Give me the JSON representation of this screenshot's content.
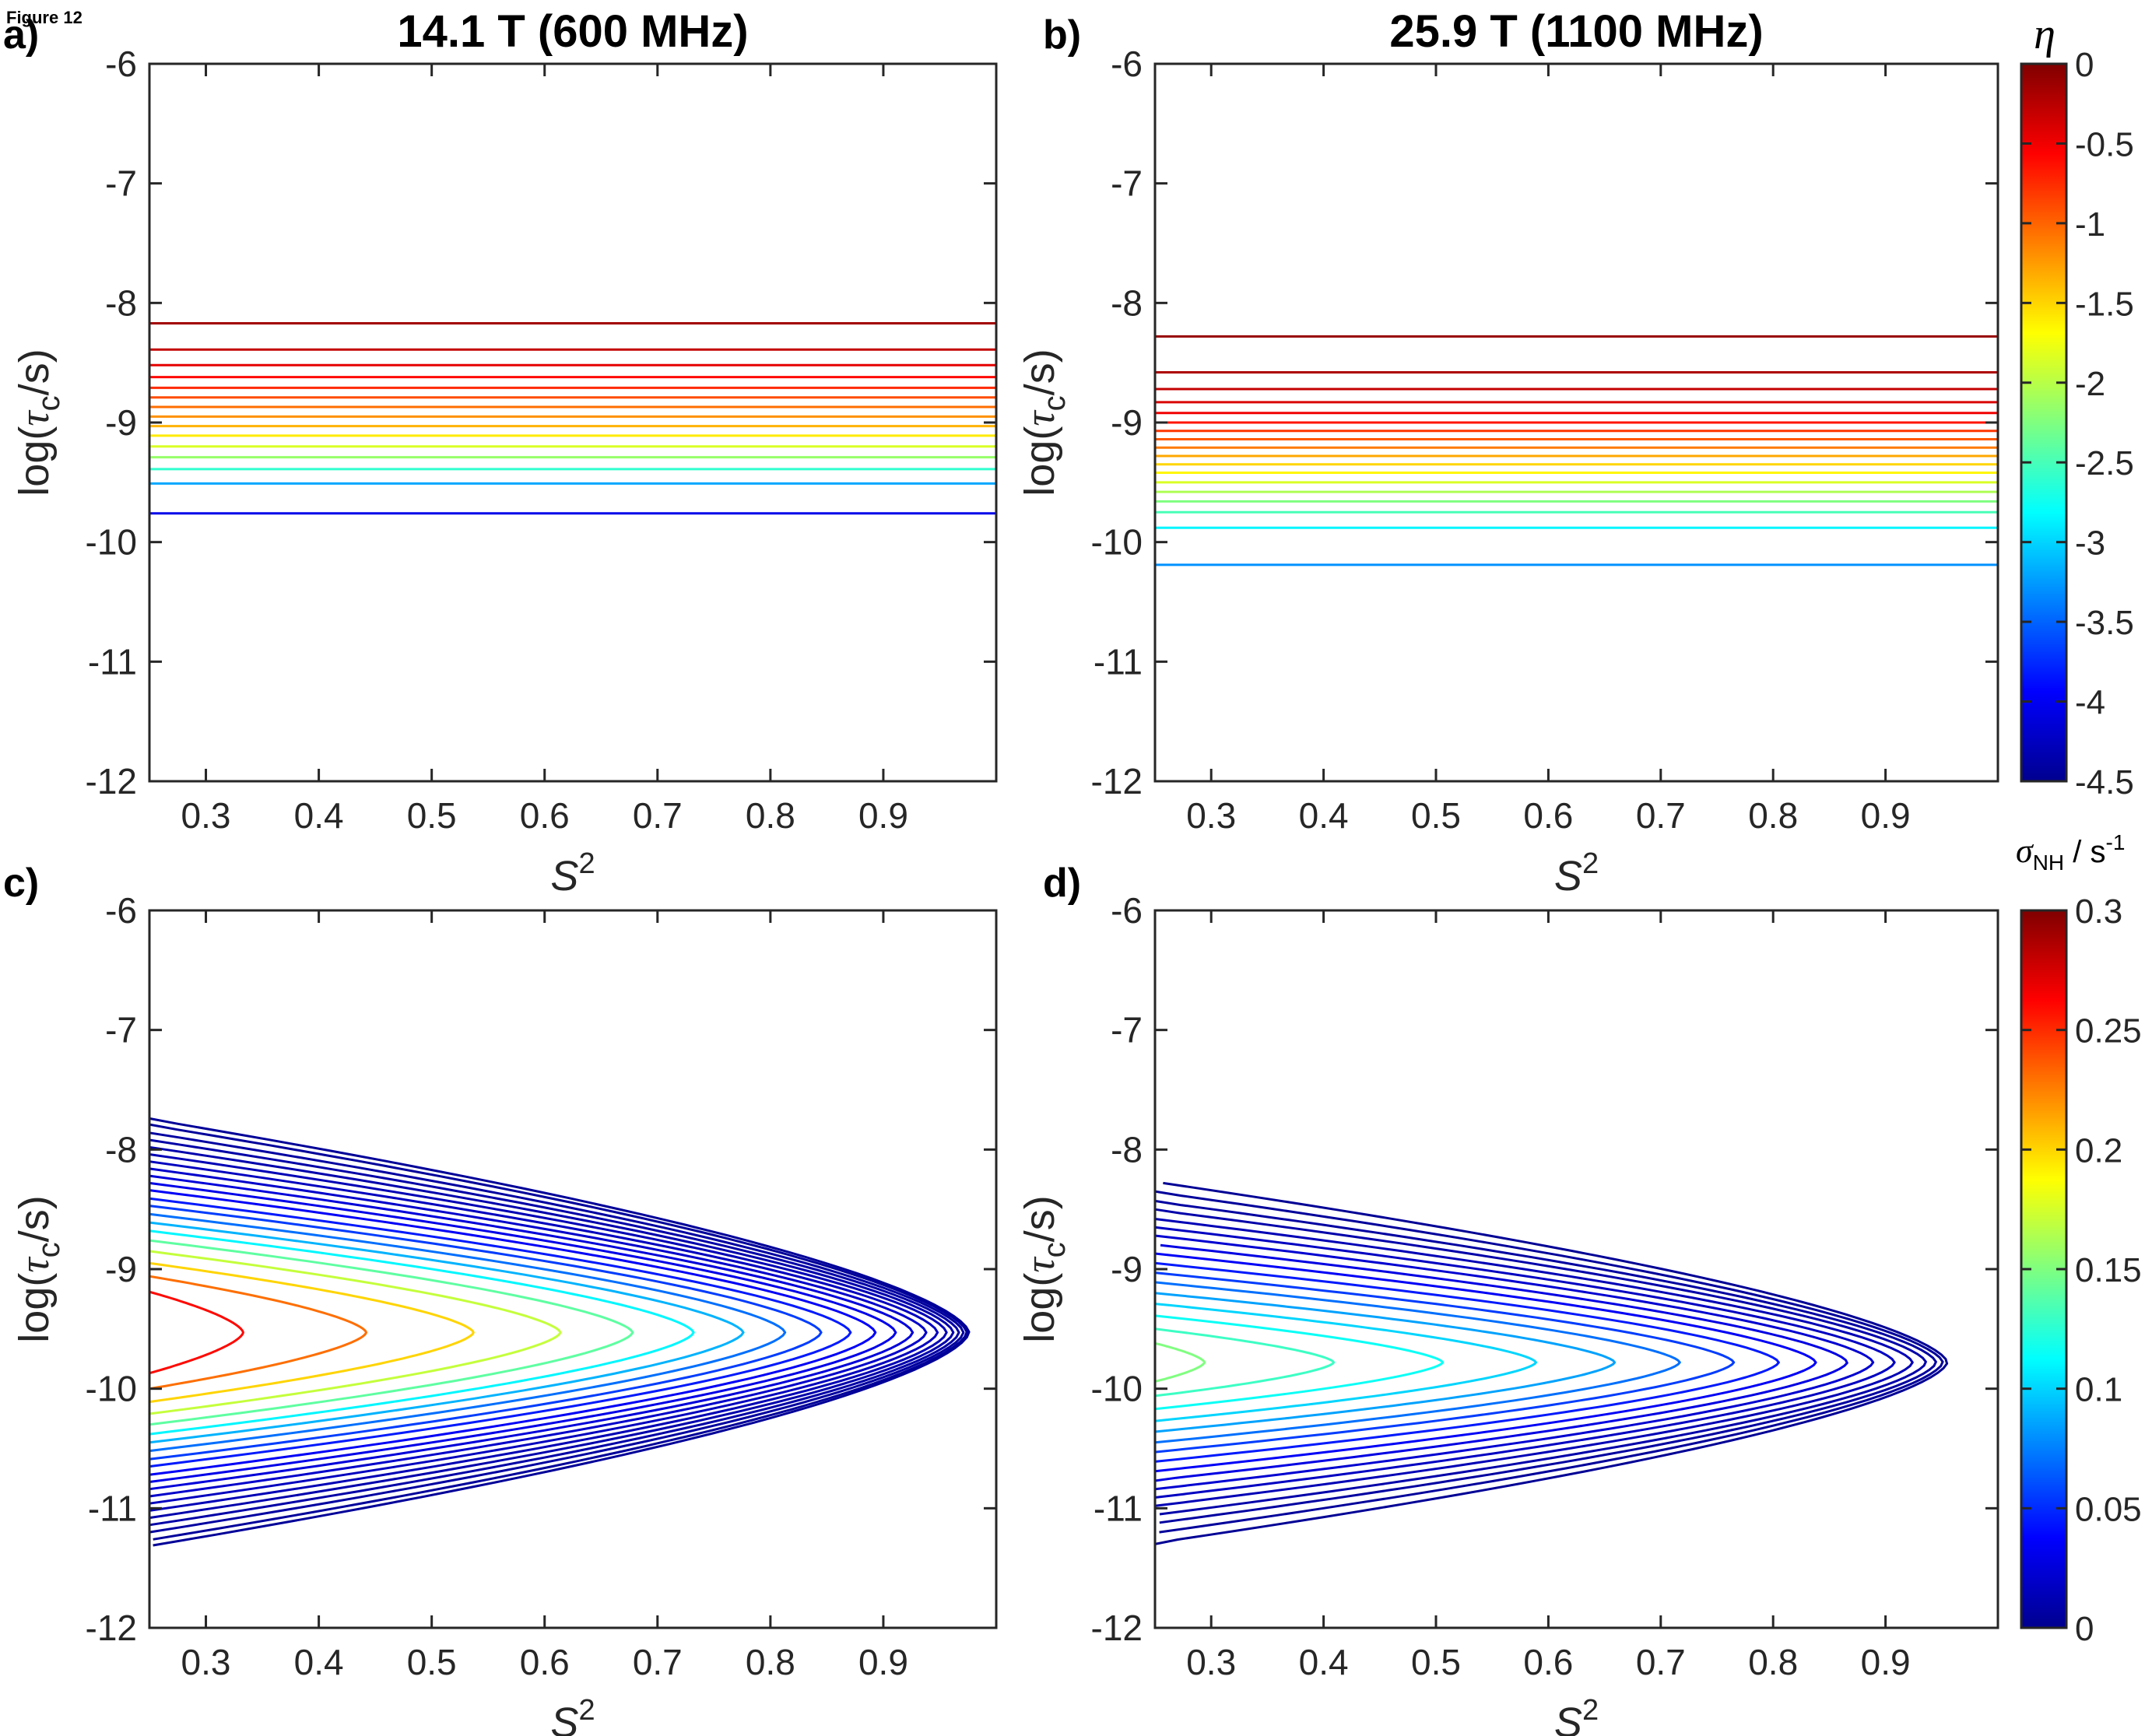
{
  "figure_label": "Figure 12",
  "colormap": [
    "#00008f",
    "#0000ff",
    "#00ffff",
    "#ffff00",
    "#ff0000",
    "#800000"
  ],
  "axis_color": "#262626",
  "chart_data": [
    {
      "panel": "a)",
      "type": "line",
      "title": "14.1 T (600 MHz)",
      "xlabel": "S2",
      "ylabel": "log(τc/s)",
      "xlim": [
        0.25,
        1.0
      ],
      "ylim": [
        -12,
        -6
      ],
      "xticks": [
        0.3,
        0.4,
        0.5,
        0.6,
        0.7,
        0.8,
        0.9
      ],
      "yticks": [
        -6,
        -7,
        -8,
        -9,
        -10,
        -11,
        -12
      ],
      "grid": false,
      "color_min": -4.5,
      "color_max": 0,
      "contours": [
        {
          "y": -8.17,
          "level": -0.15
        },
        {
          "y": -8.39,
          "level": -0.3
        },
        {
          "y": -8.52,
          "level": -0.45
        },
        {
          "y": -8.62,
          "level": -0.6
        },
        {
          "y": -8.71,
          "level": -0.75
        },
        {
          "y": -8.79,
          "level": -0.9
        },
        {
          "y": -8.87,
          "level": -1.05
        },
        {
          "y": -8.95,
          "level": -1.2
        },
        {
          "y": -9.03,
          "level": -1.35
        },
        {
          "y": -9.11,
          "level": -1.6
        },
        {
          "y": -9.2,
          "level": -1.85
        },
        {
          "y": -9.29,
          "level": -2.15
        },
        {
          "y": -9.39,
          "level": -2.6
        },
        {
          "y": -9.51,
          "level": -3.2
        },
        {
          "y": -9.76,
          "level": -4.05
        }
      ]
    },
    {
      "panel": "b)",
      "type": "line",
      "title": "25.9 T (1100 MHz)",
      "xlabel": "S2",
      "ylabel": "log(τc/s)",
      "xlim": [
        0.25,
        1.0
      ],
      "ylim": [
        -12,
        -6
      ],
      "xticks": [
        0.3,
        0.4,
        0.5,
        0.6,
        0.7,
        0.8,
        0.9
      ],
      "yticks": [
        -6,
        -7,
        -8,
        -9,
        -10,
        -11,
        -12
      ],
      "grid": false,
      "color_min": -4.5,
      "color_max": 0,
      "contours": [
        {
          "y": -8.28,
          "level": -0.1
        },
        {
          "y": -8.58,
          "level": -0.2
        },
        {
          "y": -8.72,
          "level": -0.3
        },
        {
          "y": -8.83,
          "level": -0.4
        },
        {
          "y": -8.92,
          "level": -0.5
        },
        {
          "y": -9.0,
          "level": -0.65
        },
        {
          "y": -9.07,
          "level": -0.8
        },
        {
          "y": -9.14,
          "level": -0.95
        },
        {
          "y": -9.21,
          "level": -1.1
        },
        {
          "y": -9.28,
          "level": -1.3
        },
        {
          "y": -9.35,
          "level": -1.5
        },
        {
          "y": -9.42,
          "level": -1.65
        },
        {
          "y": -9.5,
          "level": -1.85
        },
        {
          "y": -9.58,
          "level": -2.05
        },
        {
          "y": -9.66,
          "level": -2.25
        },
        {
          "y": -9.75,
          "level": -2.5
        },
        {
          "y": -9.88,
          "level": -2.85
        },
        {
          "y": -10.19,
          "level": -3.3
        }
      ]
    },
    {
      "panel": "c)",
      "type": "line",
      "title": "",
      "xlabel": "S2",
      "ylabel": "log(τc/s)",
      "xlim": [
        0.25,
        1.0
      ],
      "ylim": [
        -12,
        -6
      ],
      "xticks": [
        0.3,
        0.4,
        0.5,
        0.6,
        0.7,
        0.8,
        0.9
      ],
      "yticks": [
        -6,
        -7,
        -8,
        -9,
        -10,
        -11,
        -12
      ],
      "grid": false,
      "color_min": 0,
      "color_max": 0.3,
      "center_y": -9.53,
      "contours": [
        {
          "tip": 0.333,
          "top": -9.19,
          "bottom": -9.87,
          "level": 0.26
        },
        {
          "tip": 0.442,
          "top": -9.06,
          "bottom": -10.0,
          "level": 0.23
        },
        {
          "tip": 0.537,
          "top": -8.95,
          "bottom": -10.11,
          "level": 0.2
        },
        {
          "tip": 0.614,
          "top": -8.85,
          "bottom": -10.21,
          "level": 0.17
        },
        {
          "tip": 0.678,
          "top": -8.76,
          "bottom": -10.3,
          "level": 0.14
        },
        {
          "tip": 0.732,
          "top": -8.68,
          "bottom": -10.38,
          "level": 0.11
        },
        {
          "tip": 0.776,
          "top": -8.61,
          "bottom": -10.45,
          "level": 0.09
        },
        {
          "tip": 0.813,
          "top": -8.54,
          "bottom": -10.52,
          "level": 0.07
        },
        {
          "tip": 0.845,
          "top": -8.47,
          "bottom": -10.59,
          "level": 0.055
        },
        {
          "tip": 0.871,
          "top": -8.41,
          "bottom": -10.65,
          "level": 0.045
        },
        {
          "tip": 0.893,
          "top": -8.34,
          "bottom": -10.72,
          "level": 0.035
        },
        {
          "tip": 0.911,
          "top": -8.28,
          "bottom": -10.78,
          "level": 0.03
        },
        {
          "tip": 0.926,
          "top": -8.22,
          "bottom": -10.84,
          "level": 0.025
        },
        {
          "tip": 0.938,
          "top": -8.16,
          "bottom": -10.9,
          "level": 0.02
        },
        {
          "tip": 0.948,
          "top": -8.1,
          "bottom": -10.96,
          "level": 0.016
        },
        {
          "tip": 0.956,
          "top": -8.04,
          "bottom": -11.02,
          "level": 0.013
        },
        {
          "tip": 0.962,
          "top": -7.98,
          "bottom": -11.08,
          "level": 0.01
        },
        {
          "tip": 0.967,
          "top": -7.92,
          "bottom": -11.14,
          "level": 0.008
        },
        {
          "tip": 0.971,
          "top": -7.86,
          "bottom": -11.2,
          "level": 0.006
        },
        {
          "tip": 0.974,
          "top": -7.79,
          "bottom": -11.26,
          "level": 0.004
        },
        {
          "tip": 0.976,
          "top": -7.74,
          "bottom": -11.31,
          "level": 0.003
        }
      ]
    },
    {
      "panel": "d)",
      "type": "line",
      "title": "",
      "xlabel": "S2",
      "ylabel": "log(τc/s)",
      "xlim": [
        0.25,
        1.0
      ],
      "ylim": [
        -12,
        -6
      ],
      "xticks": [
        0.3,
        0.4,
        0.5,
        0.6,
        0.7,
        0.8,
        0.9
      ],
      "yticks": [
        -6,
        -7,
        -8,
        -9,
        -10,
        -11,
        -12
      ],
      "grid": false,
      "color_min": 0,
      "color_max": 0.3,
      "center_y": -9.78,
      "contours": [
        {
          "tip": 0.294,
          "top": -9.62,
          "bottom": -9.94,
          "level": 0.15
        },
        {
          "tip": 0.409,
          "top": -9.5,
          "bottom": -10.06,
          "level": 0.13
        },
        {
          "tip": 0.506,
          "top": -9.39,
          "bottom": -10.17,
          "level": 0.115
        },
        {
          "tip": 0.589,
          "top": -9.29,
          "bottom": -10.27,
          "level": 0.1
        },
        {
          "tip": 0.659,
          "top": -9.2,
          "bottom": -10.36,
          "level": 0.085
        },
        {
          "tip": 0.717,
          "top": -9.11,
          "bottom": -10.45,
          "level": 0.07
        },
        {
          "tip": 0.765,
          "top": -9.03,
          "bottom": -10.53,
          "level": 0.055
        },
        {
          "tip": 0.805,
          "top": -8.95,
          "bottom": -10.61,
          "level": 0.045
        },
        {
          "tip": 0.838,
          "top": -8.87,
          "bottom": -10.69,
          "level": 0.035
        },
        {
          "tip": 0.866,
          "top": -8.8,
          "bottom": -10.77,
          "level": 0.028
        },
        {
          "tip": 0.889,
          "top": -8.72,
          "bottom": -10.84,
          "level": 0.022
        },
        {
          "tip": 0.908,
          "top": -8.65,
          "bottom": -10.91,
          "level": 0.017
        },
        {
          "tip": 0.924,
          "top": -8.58,
          "bottom": -10.98,
          "level": 0.013
        },
        {
          "tip": 0.936,
          "top": -8.5,
          "bottom": -11.05,
          "level": 0.009
        },
        {
          "tip": 0.945,
          "top": -8.43,
          "bottom": -11.12,
          "level": 0.006
        },
        {
          "tip": 0.951,
          "top": -8.35,
          "bottom": -11.2,
          "level": 0.004
        },
        {
          "tip": 0.955,
          "top": -8.28,
          "bottom": -11.3,
          "level": 0.002
        }
      ]
    }
  ],
  "colorbars": [
    {
      "label": "η",
      "min": -4.5,
      "max": 0,
      "ticks": [
        "0",
        "-0.5",
        "-1",
        "-1.5",
        "-2",
        "-2.5",
        "-3",
        "-3.5",
        "-4",
        "-4.5"
      ],
      "tick_values": [
        0,
        -0.5,
        -1,
        -1.5,
        -2,
        -2.5,
        -3,
        -3.5,
        -4,
        -4.5
      ]
    },
    {
      "label_symbol": "σ",
      "label_sub": "NH",
      "label_unit": " / s",
      "label_sup": "-1",
      "min": 0,
      "max": 0.3,
      "ticks": [
        "0.3",
        "0.25",
        "0.2",
        "0.15",
        "0.1",
        "0.05",
        "0"
      ],
      "tick_values": [
        0.3,
        0.25,
        0.2,
        0.15,
        0.1,
        0.05,
        0
      ]
    }
  ]
}
